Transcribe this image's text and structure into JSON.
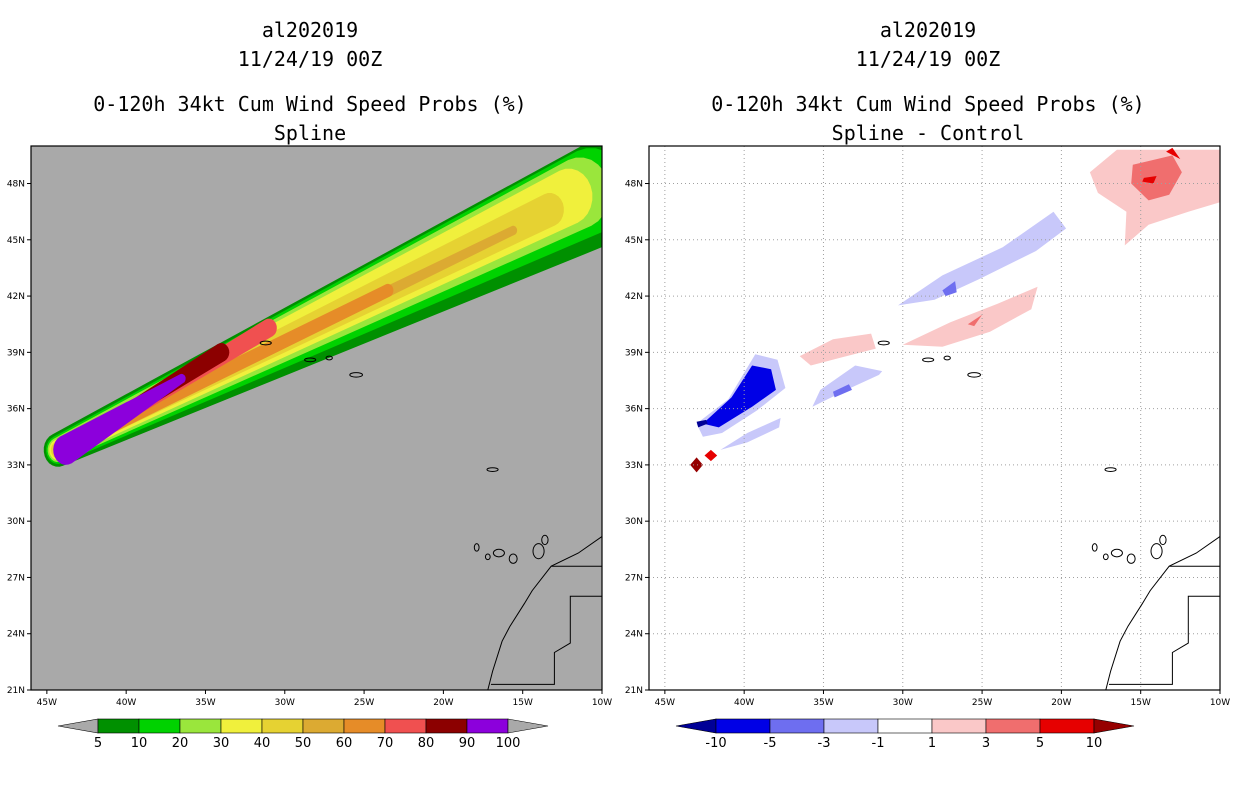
{
  "chart_data": [
    {
      "type": "heatmap",
      "title": [
        "al202019",
        "11/24/19 00Z",
        "0-120h 34kt Cum Wind Speed Probs (%)",
        "Spline"
      ],
      "xlim": [
        -46,
        -10
      ],
      "ylim": [
        21,
        50
      ],
      "xticks": [
        {
          "value": -45,
          "label": "45W"
        },
        {
          "value": -40,
          "label": "40W"
        },
        {
          "value": -35,
          "label": "35W"
        },
        {
          "value": -30,
          "label": "30W"
        },
        {
          "value": -25,
          "label": "25W"
        },
        {
          "value": -20,
          "label": "20W"
        },
        {
          "value": -15,
          "label": "15W"
        },
        {
          "value": -10,
          "label": "10W"
        }
      ],
      "yticks": [
        {
          "value": 21,
          "label": "21N"
        },
        {
          "value": 24,
          "label": "24N"
        },
        {
          "value": 27,
          "label": "27N"
        },
        {
          "value": 30,
          "label": "30N"
        },
        {
          "value": 33,
          "label": "33N"
        },
        {
          "value": 36,
          "label": "36N"
        },
        {
          "value": 39,
          "label": "39N"
        },
        {
          "value": 42,
          "label": "42N"
        },
        {
          "value": 45,
          "label": "45N"
        },
        {
          "value": 48,
          "label": "48N"
        }
      ],
      "background": "#a9a9a9",
      "colorbar": {
        "labels": [
          "5",
          "10",
          "20",
          "30",
          "40",
          "50",
          "60",
          "70",
          "80",
          "90",
          "100"
        ],
        "colors": [
          "#009000",
          "#00d200",
          "#9ae63c",
          "#f0f03c",
          "#e6d232",
          "#dcaa32",
          "#e68c28",
          "#f05050",
          "#8c0000",
          "#8c00dc"
        ],
        "end_colors": [
          "#a9a9a9",
          "#a9a9a9"
        ]
      },
      "contours": [
        {
          "level": 5,
          "color": "#009000",
          "start": [
            -44.3,
            33.8
          ],
          "end": [
            -9.6,
            47.7
          ],
          "hw_start": 0.9,
          "hw_end": 2.8
        },
        {
          "level": 10,
          "color": "#00d200",
          "start": [
            -44.3,
            33.8
          ],
          "end": [
            -10.7,
            47.6
          ],
          "hw_start": 0.75,
          "hw_end": 2.3
        },
        {
          "level": 20,
          "color": "#9ae63c",
          "start": [
            -44.3,
            33.8
          ],
          "end": [
            -11.4,
            47.5
          ],
          "hw_start": 0.65,
          "hw_end": 1.9
        },
        {
          "level": 30,
          "color": "#f0f03c",
          "start": [
            -44.3,
            33.8
          ],
          "end": [
            -12.1,
            47.3
          ],
          "hw_start": 0.55,
          "hw_end": 1.5
        },
        {
          "level": 40,
          "color": "#e6d232",
          "start": [
            -44.3,
            33.8
          ],
          "end": [
            -13.3,
            46.6
          ],
          "hw_start": 0.45,
          "hw_end": 0.9
        },
        {
          "level": 50,
          "color": "#dcaa32",
          "start": [
            -44.0,
            33.8
          ],
          "end": [
            -15.6,
            45.5
          ],
          "hw_start": 0.4,
          "hw_end": 0.25
        },
        {
          "level": 60,
          "color": "#e68c28",
          "start": [
            -44.0,
            33.8
          ],
          "end": [
            -23.5,
            42.3
          ],
          "hw_start": 0.38,
          "hw_end": 0.35
        },
        {
          "level": 70,
          "color": "#f05050",
          "start": [
            -43.8,
            33.8
          ],
          "end": [
            -31.0,
            40.3
          ],
          "hw_start": 0.35,
          "hw_end": 0.5
        },
        {
          "level": 80,
          "color": "#8c0000",
          "start": [
            -43.8,
            33.8
          ],
          "end": [
            -34.0,
            39.0
          ],
          "hw_start": 0.32,
          "hw_end": 0.5
        },
        {
          "level": 90,
          "color": "#8c00dc",
          "start": [
            -43.8,
            33.8
          ],
          "end": [
            -36.5,
            37.6
          ],
          "hw_start": 0.8,
          "hw_end": 0.25
        }
      ]
    },
    {
      "type": "heatmap",
      "title": [
        "al202019",
        "11/24/19 00Z",
        "0-120h 34kt Cum Wind Speed Probs (%)",
        "Spline - Control"
      ],
      "xlim": [
        -46,
        -10
      ],
      "ylim": [
        21,
        50
      ],
      "xticks": [
        {
          "value": -45,
          "label": "45W"
        },
        {
          "value": -40,
          "label": "40W"
        },
        {
          "value": -35,
          "label": "35W"
        },
        {
          "value": -30,
          "label": "30W"
        },
        {
          "value": -25,
          "label": "25W"
        },
        {
          "value": -20,
          "label": "20W"
        },
        {
          "value": -15,
          "label": "15W"
        },
        {
          "value": -10,
          "label": "10W"
        }
      ],
      "yticks": [
        {
          "value": 21,
          "label": "21N"
        },
        {
          "value": 24,
          "label": "24N"
        },
        {
          "value": 27,
          "label": "27N"
        },
        {
          "value": 30,
          "label": "30N"
        },
        {
          "value": 33,
          "label": "33N"
        },
        {
          "value": 36,
          "label": "36N"
        },
        {
          "value": 39,
          "label": "39N"
        },
        {
          "value": 42,
          "label": "42N"
        },
        {
          "value": 45,
          "label": "45N"
        },
        {
          "value": 48,
          "label": "48N"
        }
      ],
      "background": "#ffffff",
      "colorbar": {
        "labels": [
          "-10",
          "-5",
          "-3",
          "-1",
          "1",
          "3",
          "5",
          "10"
        ],
        "colors": [
          "#0000e6",
          "#6e6ef0",
          "#c8c8fa",
          "#ffffff",
          "#fac8c8",
          "#f06e6e",
          "#e60000"
        ],
        "end_colors": [
          "#000096",
          "#960000"
        ]
      },
      "difference_areas": [
        {
          "name": "neg-west",
          "level": -1,
          "color": "#c8c8fa",
          "points": [
            [
              -43,
              35.2
            ],
            [
              -41,
              36.5
            ],
            [
              -39.3,
              38.9
            ],
            [
              -37.9,
              38.6
            ],
            [
              -37.4,
              37.1
            ],
            [
              -39.2,
              35.9
            ],
            [
              -41.4,
              34.7
            ],
            [
              -42.6,
              34.5
            ]
          ]
        },
        {
          "name": "neg-west-mid",
          "level": -5,
          "color": "#0000e6",
          "points": [
            [
              -42.6,
              35.2
            ],
            [
              -40.8,
              36.6
            ],
            [
              -39.5,
              38.3
            ],
            [
              -38.3,
              38.1
            ],
            [
              -38.0,
              37.0
            ],
            [
              -39.5,
              36.1
            ],
            [
              -41.6,
              35.0
            ]
          ]
        },
        {
          "name": "neg-west-inner",
          "level": -10,
          "color": "#000096",
          "points": [
            [
              -42.9,
              35.0
            ],
            [
              -42.3,
              35.2
            ],
            [
              -42.4,
              35.4
            ],
            [
              -43.0,
              35.3
            ]
          ]
        },
        {
          "name": "neg-south",
          "level": -1,
          "color": "#c8c8fa",
          "points": [
            [
              -41.5,
              33.8
            ],
            [
              -39.8,
              34.7
            ],
            [
              -37.7,
              35.5
            ],
            [
              -37.8,
              35.0
            ],
            [
              -39.8,
              34.2
            ]
          ]
        },
        {
          "name": "neg-center",
          "level": -1,
          "color": "#c8c8fa",
          "points": [
            [
              -35.7,
              36.1
            ],
            [
              -33.3,
              37.1
            ],
            [
              -31.5,
              37.8
            ],
            [
              -31.3,
              38.0
            ],
            [
              -33.0,
              38.3
            ],
            [
              -35.2,
              37.0
            ]
          ]
        },
        {
          "name": "neg-center-mid",
          "level": -3,
          "color": "#6e6ef0",
          "points": [
            [
              -34.3,
              36.6
            ],
            [
              -33.2,
              37.0
            ],
            [
              -33.4,
              37.3
            ],
            [
              -34.4,
              36.9
            ]
          ]
        },
        {
          "name": "neg-north",
          "level": -1,
          "color": "#c8c8fa",
          "points": [
            [
              -30.3,
              41.5
            ],
            [
              -27.5,
              43.1
            ],
            [
              -23.7,
              44.6
            ],
            [
              -20.5,
              46.5
            ],
            [
              -19.7,
              45.6
            ],
            [
              -21.6,
              44.4
            ],
            [
              -25.2,
              42.9
            ],
            [
              -28.0,
              41.8
            ]
          ]
        },
        {
          "name": "neg-north-mid",
          "level": -3,
          "color": "#6e6ef0",
          "points": [
            [
              -27.5,
              42.3
            ],
            [
              -26.7,
              42.8
            ],
            [
              -26.6,
              42.2
            ],
            [
              -27.3,
              42.0
            ]
          ]
        },
        {
          "name": "pos-center",
          "level": 1,
          "color": "#fac8c8",
          "points": [
            [
              -36.5,
              38.8
            ],
            [
              -34.4,
              39.7
            ],
            [
              -32.0,
              40.0
            ],
            [
              -31.7,
              39.2
            ],
            [
              -34.0,
              38.7
            ],
            [
              -35.8,
              38.3
            ]
          ]
        },
        {
          "name": "pos-east",
          "level": 1,
          "color": "#fac8c8",
          "points": [
            [
              -30.0,
              39.4
            ],
            [
              -27.0,
              40.6
            ],
            [
              -24.0,
              41.6
            ],
            [
              -21.5,
              42.5
            ],
            [
              -21.9,
              41.3
            ],
            [
              -24.5,
              40.1
            ],
            [
              -27.5,
              39.3
            ]
          ]
        },
        {
          "name": "pos-east-mid",
          "level": 3,
          "color": "#f06e6e",
          "points": [
            [
              -25.9,
              40.5
            ],
            [
              -25.0,
              41.0
            ],
            [
              -25.5,
              40.4
            ]
          ]
        },
        {
          "name": "pos-ne",
          "level": 1,
          "color": "#fac8c8",
          "points": [
            [
              -16.5,
              49.8
            ],
            [
              -10.0,
              49.8
            ],
            [
              -10.0,
              47.0
            ],
            [
              -12.0,
              46.5
            ],
            [
              -14.5,
              45.8
            ],
            [
              -16.0,
              44.7
            ],
            [
              -15.9,
              46.5
            ],
            [
              -17.7,
              47.5
            ],
            [
              -18.2,
              48.6
            ]
          ]
        },
        {
          "name": "pos-ne-mid",
          "level": 3,
          "color": "#f06e6e",
          "points": [
            [
              -15.5,
              49.0
            ],
            [
              -13.0,
              49.5
            ],
            [
              -12.4,
              48.6
            ],
            [
              -13.2,
              47.4
            ],
            [
              -14.5,
              47.1
            ],
            [
              -15.6,
              48.0
            ]
          ]
        },
        {
          "name": "pos-ne-inner",
          "level": 5,
          "color": "#e60000",
          "points": [
            [
              -14.8,
              48.3
            ],
            [
              -14.0,
              48.4
            ],
            [
              -14.2,
              48.0
            ],
            [
              -14.9,
              48.1
            ]
          ]
        },
        {
          "name": "pos-ne-inner2",
          "level": 5,
          "color": "#e60000",
          "points": [
            [
              -13.4,
              49.7
            ],
            [
              -12.5,
              49.3
            ],
            [
              -13.0,
              49.9
            ]
          ]
        },
        {
          "name": "pos-sw-1",
          "level": 10,
          "color": "#960000",
          "points": [
            [
              -43.4,
              33.0
            ],
            [
              -43.0,
              33.4
            ],
            [
              -42.6,
              33.0
            ],
            [
              -43.0,
              32.6
            ]
          ]
        },
        {
          "name": "pos-sw-2",
          "level": 5,
          "color": "#e60000",
          "points": [
            [
              -42.5,
              33.5
            ],
            [
              -42.1,
              33.8
            ],
            [
              -41.7,
              33.5
            ],
            [
              -42.1,
              33.2
            ]
          ]
        }
      ]
    }
  ]
}
